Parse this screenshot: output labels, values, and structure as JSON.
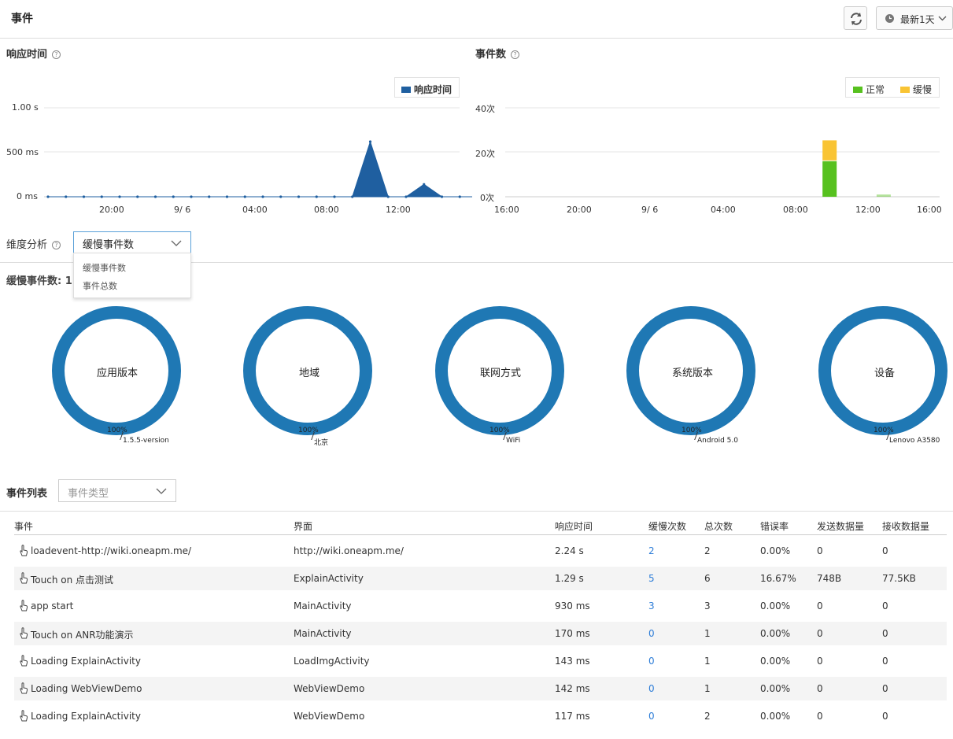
{
  "header": {
    "title": "事件",
    "range_label": "最新1天"
  },
  "response_chart": {
    "title": "响应时间",
    "chart_data": {
      "type": "area",
      "title": "响应时间",
      "legend": [
        "响应时间"
      ],
      "ylabel": "",
      "y_ticks": [
        "1.00 s",
        "500 ms",
        "0 ms"
      ],
      "ylim": [
        0,
        1000
      ],
      "x_ticks": [
        "20:00",
        "9/ 6",
        "04:00",
        "08:00",
        "12:00"
      ],
      "series": [
        {
          "name": "响应时间",
          "color": "#1f5fa0",
          "x_hours": [
            17,
            18,
            19,
            20,
            21,
            22,
            23,
            24,
            25,
            26,
            27,
            28,
            29,
            30,
            31,
            32,
            33,
            34,
            35,
            36,
            37,
            38,
            39,
            40,
            41
          ],
          "values": [
            0,
            0,
            0,
            0,
            0,
            0,
            0,
            0,
            0,
            0,
            0,
            0,
            0,
            0,
            0,
            0,
            0,
            0,
            620,
            0,
            0,
            140,
            0,
            0,
            0
          ]
        }
      ]
    }
  },
  "count_chart": {
    "title": "事件数",
    "chart_data": {
      "type": "bar",
      "title": "事件数",
      "legend": [
        "正常",
        "缓慢"
      ],
      "y_ticks": [
        "40次",
        "20次",
        "0次"
      ],
      "ylim": [
        0,
        40
      ],
      "x_ticks": [
        "16:00",
        "20:00",
        "9/ 6",
        "04:00",
        "08:00",
        "12:00",
        "16:00"
      ],
      "series": [
        {
          "name": "正常",
          "color": "#57c11f",
          "x_hours": [
            34,
            37
          ],
          "values": [
            16,
            1
          ]
        },
        {
          "name": "缓慢",
          "color": "#f9c434",
          "x_hours": [
            34,
            37
          ],
          "values": [
            9,
            0
          ]
        }
      ]
    }
  },
  "dimension": {
    "label": "维度分析",
    "selected": "缓慢事件数",
    "options": [
      "缓慢事件数",
      "事件总数"
    ],
    "summary": "缓慢事件数: 1"
  },
  "donuts": [
    {
      "title": "应用版本",
      "pct": "100%",
      "value": "1.5.5-version"
    },
    {
      "title": "地域",
      "pct": "100%",
      "value": "北京"
    },
    {
      "title": "联网方式",
      "pct": "100%",
      "value": "WiFi"
    },
    {
      "title": "系统版本",
      "pct": "100%",
      "value": "Android 5.0"
    },
    {
      "title": "设备",
      "pct": "100%",
      "value": "Lenovo A3580"
    }
  ],
  "donut_color": "#1f78b4",
  "event_list": {
    "title": "事件列表",
    "filter_placeholder": "事件类型",
    "columns": [
      "事件",
      "界面",
      "响应时间",
      "缓慢次数",
      "总次数",
      "错误率",
      "发送数据量",
      "接收数据量"
    ],
    "rows": [
      [
        "loadevent-http://wiki.oneapm.me/",
        "http://wiki.oneapm.me/",
        "2.24 s",
        "2",
        "2",
        "0.00%",
        "0",
        "0"
      ],
      [
        "Touch on 点击测试",
        "ExplainActivity",
        "1.29 s",
        "5",
        "6",
        "16.67%",
        "748B",
        "77.5KB"
      ],
      [
        "app start",
        "MainActivity",
        "930 ms",
        "3",
        "3",
        "0.00%",
        "0",
        "0"
      ],
      [
        "Touch on ANR功能演示",
        "MainActivity",
        "170 ms",
        "0",
        "1",
        "0.00%",
        "0",
        "0"
      ],
      [
        "Loading ExplainActivity",
        "LoadImgActivity",
        "143 ms",
        "0",
        "1",
        "0.00%",
        "0",
        "0"
      ],
      [
        "Loading WebViewDemo",
        "WebViewDemo",
        "142 ms",
        "0",
        "1",
        "0.00%",
        "0",
        "0"
      ],
      [
        "Loading ExplainActivity",
        "WebViewDemo",
        "117 ms",
        "0",
        "2",
        "0.00%",
        "0",
        "0"
      ]
    ]
  }
}
